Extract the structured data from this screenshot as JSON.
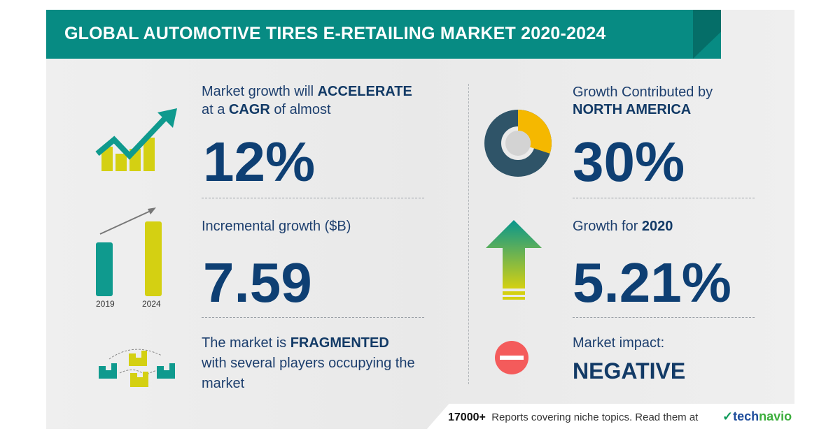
{
  "title": "GLOBAL AUTOMOTIVE TIRES E-RETAILING MARKET 2020-2024",
  "cagr": {
    "line1_pre": "Market growth will ",
    "line1_bold": "ACCELERATE",
    "line2_pre": "at a ",
    "line2_bold": "CAGR",
    "line2_post": " of almost",
    "value": "12%"
  },
  "incremental": {
    "label": "Incremental growth ($B)",
    "value": "7.59",
    "years": [
      "2019",
      "2024"
    ]
  },
  "market": {
    "line1_pre": "The market is ",
    "line1_bold": "FRAGMENTED",
    "line2": "with several players occupying the",
    "line3": "market"
  },
  "region": {
    "label": "Growth Contributed by",
    "region": "NORTH AMERICA",
    "value": "30%",
    "share_fraction": 0.3
  },
  "growth": {
    "label_pre": "Growth for ",
    "year": "2020",
    "value": "5.21%"
  },
  "impact": {
    "label": "Market impact:",
    "value": "NEGATIVE"
  },
  "footer": {
    "count": "17000+",
    "text": "Reports covering niche topics. Read them at",
    "logo_a": "tech",
    "logo_b": "navio"
  },
  "colors": {
    "teal": "#078b83",
    "navy": "#0e3f73",
    "yellow": "#d4d012",
    "donut_dark": "#2f5468",
    "donut_accent": "#f5b800",
    "negative": "#f45b5b"
  }
}
